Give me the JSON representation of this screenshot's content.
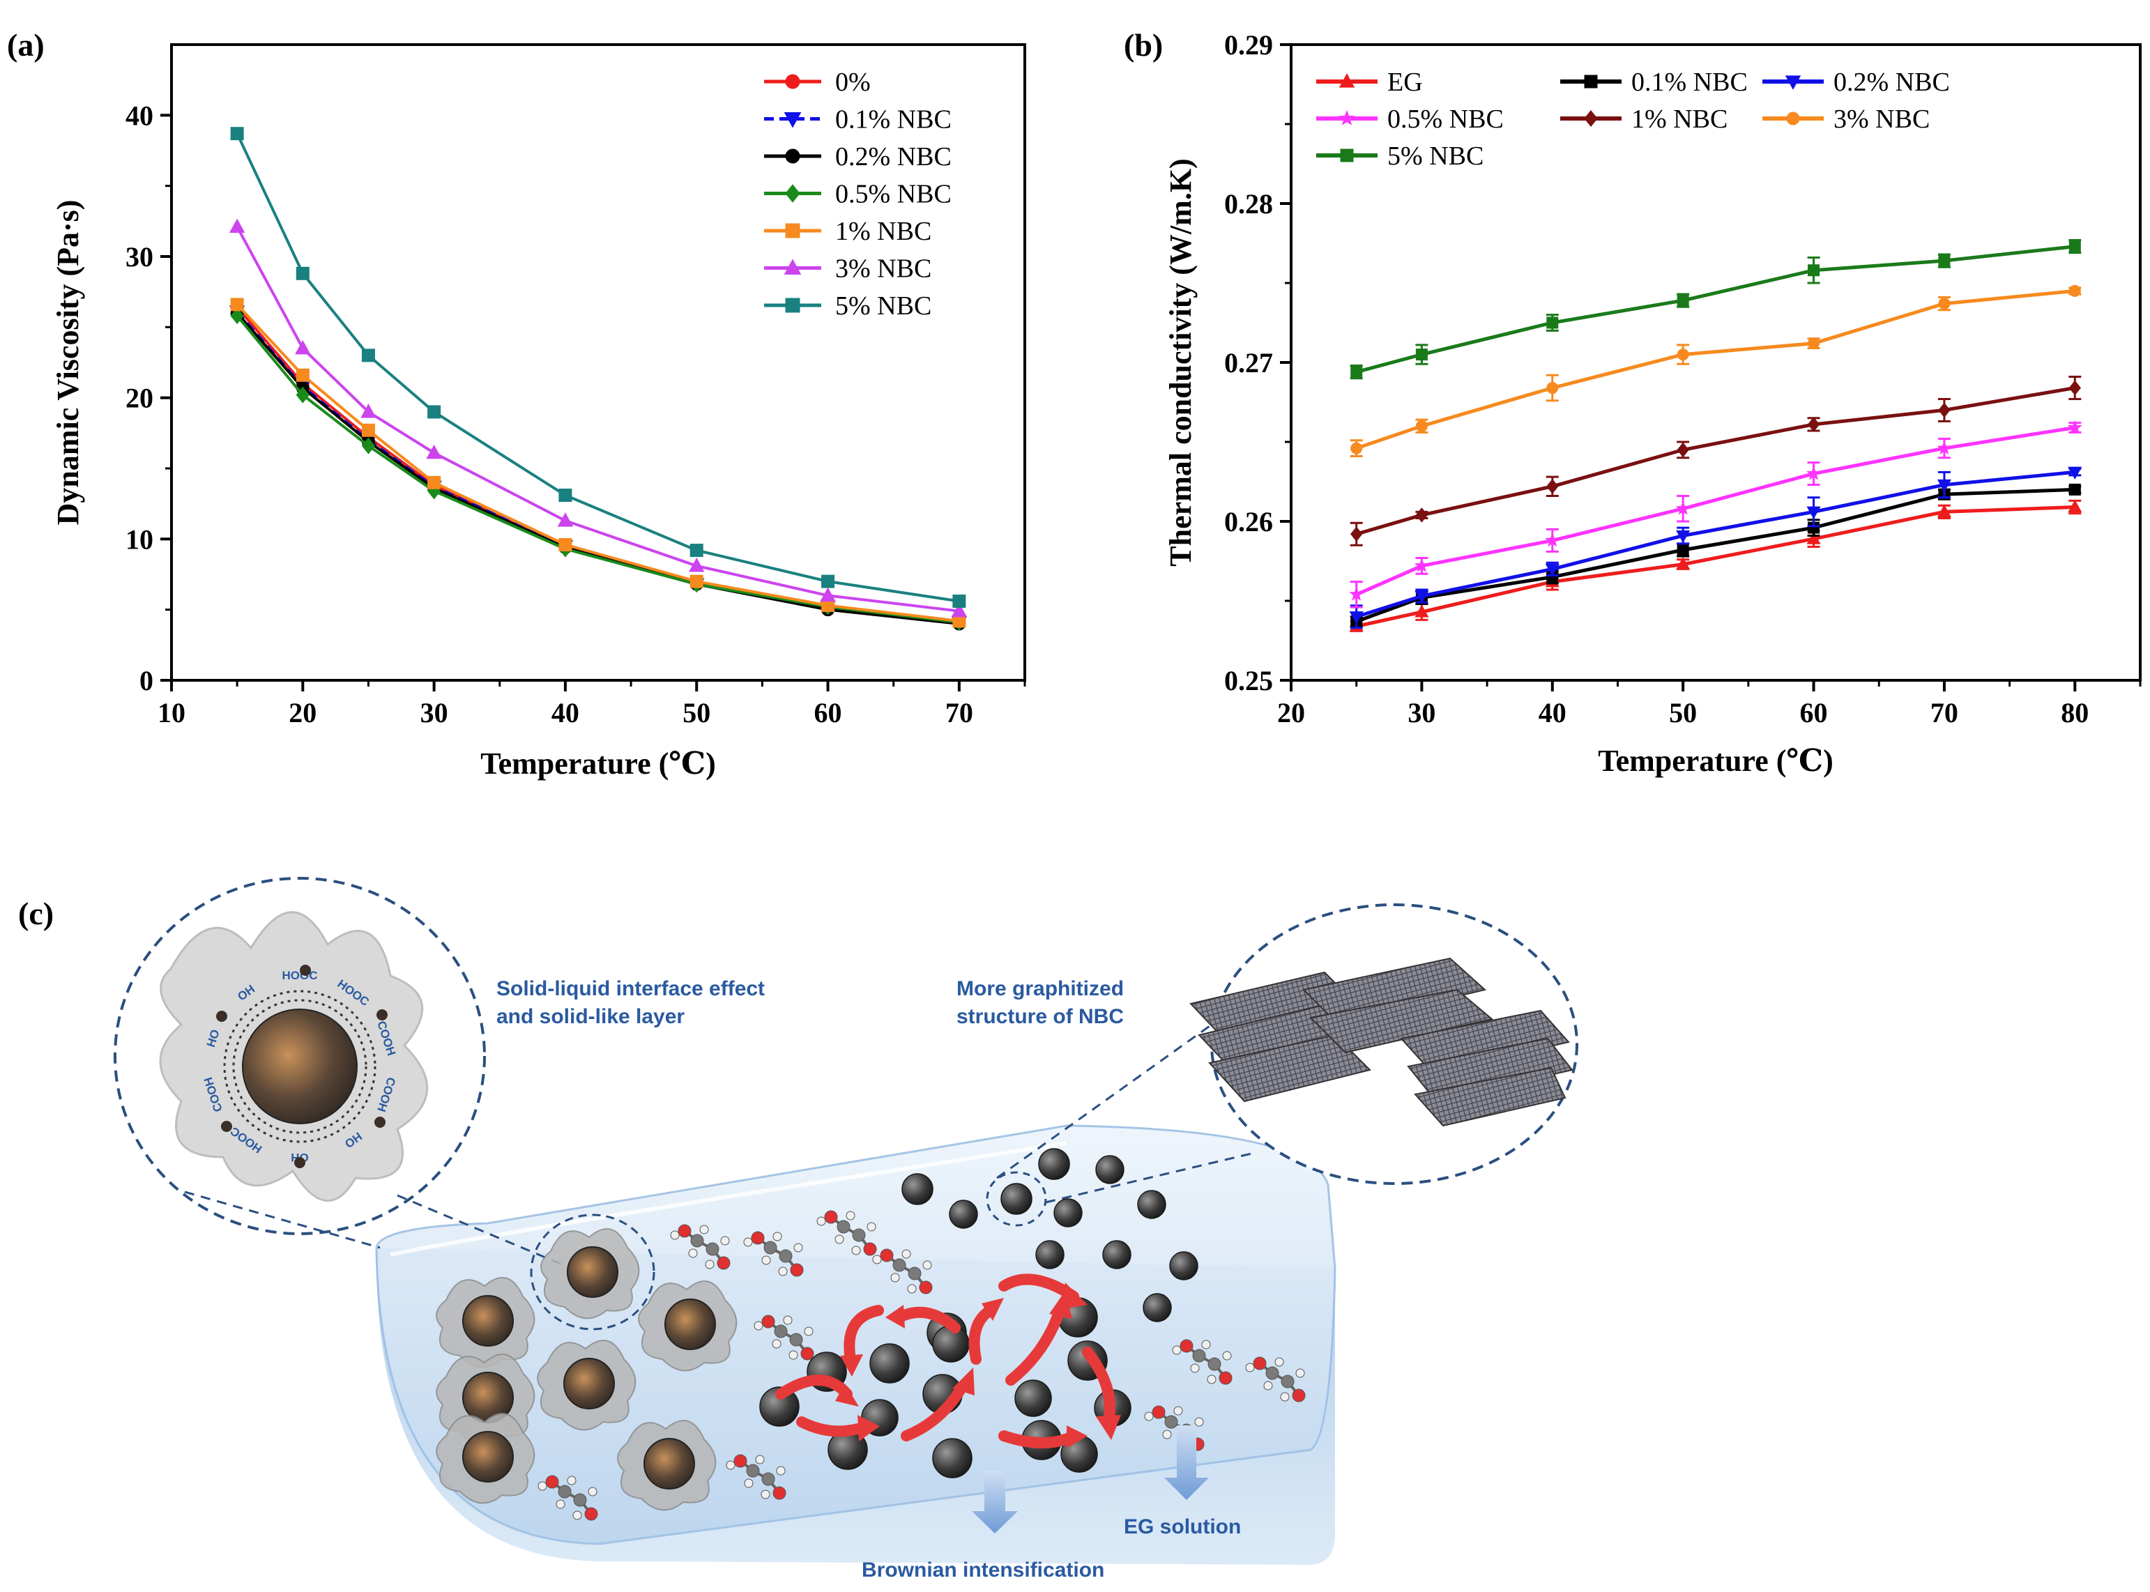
{
  "colors": {
    "red": "#ee1c1c",
    "blue": "#1010e8",
    "black": "#000000",
    "green": "#1a8a1a",
    "orange": "#f68a1e",
    "violet": "#cc44ee",
    "teal": "#1a8080",
    "magenta": "#ff33ff",
    "maroon": "#7a1010",
    "dkgreen": "#1a7a1a",
    "caption": "#2a5aa0",
    "arrow": "#e63a3a"
  },
  "panels": {
    "a_label": "(a)",
    "b_label": "(b)",
    "c_label": "(c)"
  },
  "chart_data": [
    {
      "id": "a",
      "type": "line",
      "title": "",
      "xlabel": "Temperature (℃)",
      "ylabel": "Dynamic Viscosity (Pa·s)",
      "xlim": [
        10,
        75
      ],
      "ylim": [
        0,
        45
      ],
      "xticks": [
        10,
        20,
        30,
        40,
        50,
        60,
        70
      ],
      "yticks": [
        0,
        10,
        20,
        30,
        40
      ],
      "legend_position": "top-right",
      "x": [
        15,
        20,
        25,
        30,
        40,
        50,
        60,
        70
      ],
      "series": [
        {
          "name": "0%",
          "color": "red",
          "marker": "circle",
          "values": [
            26.4,
            21.0,
            17.2,
            13.8,
            9.4,
            6.9,
            5.1,
            4.0
          ]
        },
        {
          "name": "0.1% NBC",
          "color": "blue",
          "marker": "triangle-down",
          "dashed": true,
          "values": [
            26.1,
            20.8,
            17.0,
            13.7,
            9.5,
            6.8,
            5.2,
            4.1
          ]
        },
        {
          "name": "0.2% NBC",
          "color": "black",
          "marker": "circle",
          "values": [
            26.0,
            20.7,
            16.9,
            13.6,
            9.4,
            6.8,
            5.0,
            4.0
          ]
        },
        {
          "name": "0.5% NBC",
          "color": "green",
          "marker": "diamond",
          "values": [
            25.8,
            20.2,
            16.6,
            13.4,
            9.3,
            6.8,
            5.2,
            4.1
          ]
        },
        {
          "name": "1% NBC",
          "color": "orange",
          "marker": "square",
          "values": [
            26.6,
            21.6,
            17.7,
            14.0,
            9.6,
            7.0,
            5.3,
            4.2
          ]
        },
        {
          "name": "3% NBC",
          "color": "violet",
          "marker": "triangle-up",
          "values": [
            32.1,
            23.5,
            19.0,
            16.1,
            11.3,
            8.1,
            6.0,
            4.9
          ]
        },
        {
          "name": "5% NBC",
          "color": "teal",
          "marker": "square",
          "values": [
            38.7,
            28.8,
            23.0,
            19.0,
            13.1,
            9.2,
            7.0,
            5.6
          ]
        }
      ]
    },
    {
      "id": "b",
      "type": "line",
      "title": "",
      "xlabel": "Temperature (℃)",
      "ylabel": "Thermal conductivity (W/m.K)",
      "xlim": [
        20,
        85
      ],
      "ylim": [
        0.25,
        0.29
      ],
      "xticks": [
        20,
        30,
        40,
        50,
        60,
        70,
        80
      ],
      "yticks": [
        0.25,
        0.26,
        0.27,
        0.28,
        0.29
      ],
      "legend_position": "top-left",
      "x": [
        25,
        30,
        40,
        50,
        60,
        70,
        80
      ],
      "series": [
        {
          "name": "EG",
          "color": "red",
          "marker": "triangle-up",
          "values": [
            0.2534,
            0.2543,
            0.2562,
            0.2573,
            0.2589,
            0.2606,
            0.2609
          ],
          "errors": [
            0.0003,
            0.0005,
            0.0005,
            0.0003,
            0.0005,
            0.0004,
            0.0004
          ]
        },
        {
          "name": "0.1% NBC",
          "color": "black",
          "marker": "square",
          "values": [
            0.2537,
            0.2552,
            0.2565,
            0.2582,
            0.2596,
            0.2617,
            0.262
          ],
          "errors": [
            0.0003,
            0.0004,
            0.0004,
            0.0004,
            0.0005,
            0.0003,
            0.0002
          ]
        },
        {
          "name": "0.2% NBC",
          "color": "blue",
          "marker": "triangle-down",
          "values": [
            0.254,
            0.2553,
            0.257,
            0.2591,
            0.2606,
            0.2623,
            0.2631
          ],
          "errors": [
            0.0007,
            0.0004,
            0.0004,
            0.0005,
            0.0009,
            0.0008,
            0.0002
          ]
        },
        {
          "name": "0.5% NBC",
          "color": "magenta",
          "marker": "star",
          "values": [
            0.2554,
            0.2572,
            0.2588,
            0.2608,
            0.263,
            0.2646,
            0.2659
          ],
          "errors": [
            0.0008,
            0.0005,
            0.0007,
            0.0008,
            0.0007,
            0.0006,
            0.0003
          ]
        },
        {
          "name": "1% NBC",
          "color": "maroon",
          "marker": "diamond",
          "values": [
            0.2592,
            0.2604,
            0.2622,
            0.2645,
            0.2661,
            0.267,
            0.2684
          ],
          "errors": [
            0.0007,
            0.0002,
            0.0006,
            0.0005,
            0.0004,
            0.0007,
            0.0007
          ]
        },
        {
          "name": "3% NBC",
          "color": "orange",
          "marker": "circle",
          "values": [
            0.2646,
            0.266,
            0.2684,
            0.2705,
            0.2712,
            0.2737,
            0.2745
          ],
          "errors": [
            0.0005,
            0.0004,
            0.0008,
            0.0006,
            0.0003,
            0.0004,
            0.0002
          ]
        },
        {
          "name": "5% NBC",
          "color": "dkgreen",
          "marker": "square",
          "values": [
            0.2694,
            0.2705,
            0.2725,
            0.2739,
            0.2758,
            0.2764,
            0.2773
          ],
          "errors": [
            0.0004,
            0.0006,
            0.0005,
            0.0004,
            0.0008,
            0.0004,
            0.0004
          ]
        }
      ]
    }
  ],
  "schematic": {
    "caption_interface": [
      "Solid-liquid interface effect",
      "and solid-like layer"
    ],
    "caption_graphitized": [
      "More graphitized",
      "structure of NBC"
    ],
    "caption_eg": "EG solution",
    "caption_brownian": "Brownian intensification",
    "functional_group_labels": [
      "HOOC",
      "HOOC",
      "COOH",
      "COOH",
      "HO",
      "OH",
      "HOOC",
      "COOH",
      "HO",
      "OH"
    ]
  }
}
